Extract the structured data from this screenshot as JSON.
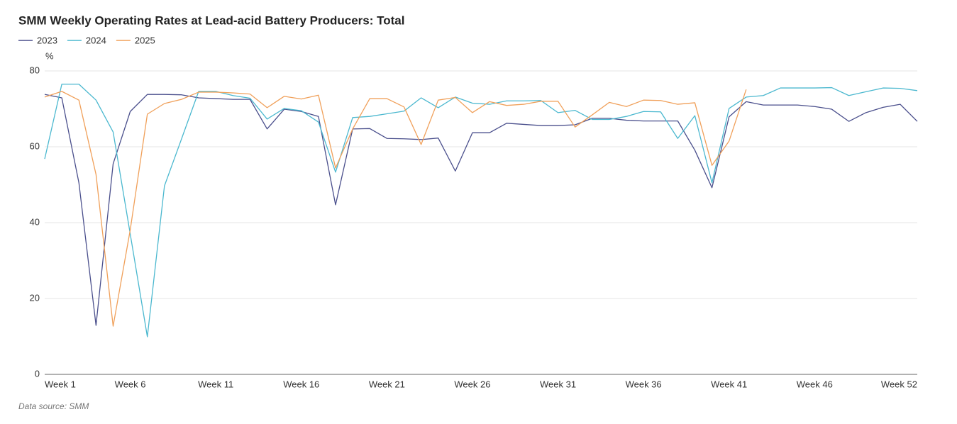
{
  "chart_data": {
    "type": "line",
    "title": "SMM Weekly Operating Rates at Lead-acid Battery Producers: Total",
    "y_unit": "%",
    "source": "Data source:  SMM",
    "categories": [
      "Week 1",
      null,
      null,
      null,
      null,
      "Week 6",
      null,
      null,
      null,
      null,
      "Week 11",
      null,
      null,
      null,
      null,
      "Week 16",
      null,
      null,
      null,
      null,
      "Week 21",
      null,
      null,
      null,
      null,
      "Week 26",
      null,
      null,
      null,
      null,
      "Week 31",
      null,
      null,
      null,
      null,
      "Week 36",
      null,
      null,
      null,
      null,
      "Week 41",
      null,
      null,
      null,
      null,
      "Week 46",
      null,
      null,
      null,
      null,
      null,
      "Week 52"
    ],
    "ylim": [
      0,
      80
    ],
    "yticks": [
      0,
      20,
      40,
      60,
      80
    ],
    "grid": true,
    "legend": "top-left",
    "series": [
      {
        "name": "2023",
        "color": "#4a4f8c",
        "values": [
          73.8,
          72.9,
          50.5,
          12.9,
          55.5,
          69.3,
          73.8,
          73.8,
          73.7,
          72.9,
          72.7,
          72.5,
          72.5,
          64.7,
          69.9,
          69.3,
          68.0,
          44.7,
          64.7,
          64.8,
          62.2,
          62.1,
          61.9,
          62.3,
          53.6,
          63.7,
          63.7,
          66.2,
          65.9,
          65.6,
          65.6,
          65.8,
          67.5,
          67.5,
          67.0,
          66.8,
          66.8,
          66.8,
          59.1,
          49.2,
          67.9,
          71.9,
          71.0,
          71.0,
          71.0,
          70.6,
          69.9,
          66.7,
          69.0,
          70.4,
          71.2,
          66.7
        ]
      },
      {
        "name": "2024",
        "color": "#4bb8cf",
        "values": [
          56.8,
          76.5,
          76.5,
          72.3,
          63.9,
          37.0,
          9.9,
          49.7,
          62.1,
          74.6,
          74.6,
          73.5,
          72.8,
          67.3,
          70.1,
          69.5,
          66.5,
          53.3,
          67.7,
          68.0,
          68.7,
          69.4,
          72.9,
          70.3,
          73.1,
          71.5,
          71.2,
          72.1,
          72.1,
          72.2,
          69.0,
          69.6,
          67.2,
          67.2,
          68.0,
          69.3,
          69.2,
          62.2,
          68.2,
          50.5,
          70.1,
          73.1,
          73.5,
          75.5,
          75.5,
          75.5,
          75.6,
          73.5,
          74.5,
          75.5,
          75.4,
          74.8
        ]
      },
      {
        "name": "2025",
        "color": "#f0a05a",
        "values": [
          73.1,
          74.6,
          72.3,
          52.7,
          12.7,
          38.1,
          68.6,
          71.4,
          72.5,
          74.4,
          74.4,
          74.2,
          73.9,
          70.3,
          73.3,
          72.6,
          73.6,
          54.4,
          64.7,
          72.7,
          72.7,
          70.5,
          60.6,
          72.3,
          73.0,
          69.0,
          71.9,
          70.9,
          71.2,
          72.0,
          72.0,
          65.2,
          68.4,
          71.7,
          70.6,
          72.3,
          72.2,
          71.2,
          71.6,
          55.1,
          61.5,
          75.1,
          null,
          null,
          null,
          null,
          null,
          null,
          null,
          null,
          null,
          null
        ]
      }
    ]
  }
}
